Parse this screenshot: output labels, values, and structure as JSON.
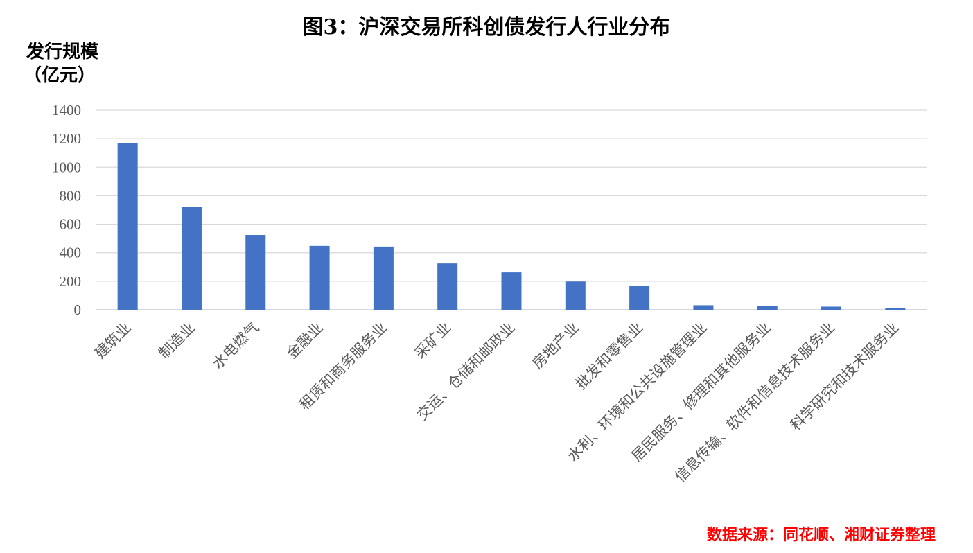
{
  "title": "图3：沪深交易所科创债发行人行业分布",
  "ylabel_line1": "发行规模",
  "ylabel_line2": "（亿元）",
  "source": "数据来源：同花顺、湘财证券整理",
  "colors": {
    "bar": "#4472c4",
    "grid": "#d9d9d9",
    "source": "#ff0000"
  },
  "chart_data": {
    "type": "bar",
    "title": "图3：沪深交易所科创债发行人行业分布",
    "ylabel": "发行规模（亿元）",
    "xlabel": "",
    "ylim": [
      0,
      1400
    ],
    "yticks": [
      0,
      200,
      400,
      600,
      800,
      1000,
      1200,
      1400
    ],
    "grid": true,
    "categories": [
      "建筑业",
      "制造业",
      "水电燃气",
      "金融业",
      "租赁和商务服务业",
      "采矿业",
      "交运、仓储和邮政业",
      "房地产业",
      "批发和零售业",
      "水利、环境和公共设施管理业",
      "居民服务、修理和其他服务业",
      "信息传输、软件和信息技术服务业",
      "科学研究和技术服务业"
    ],
    "values": [
      1170,
      720,
      525,
      448,
      443,
      325,
      262,
      198,
      170,
      32,
      27,
      22,
      14
    ]
  }
}
